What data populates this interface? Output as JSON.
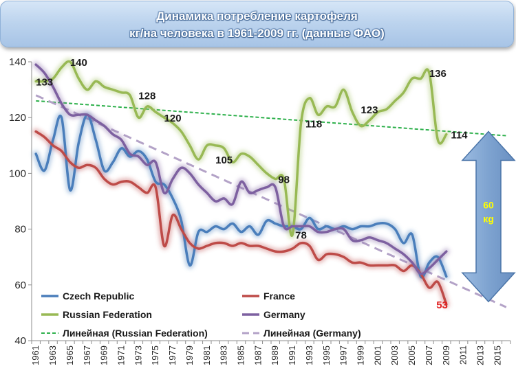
{
  "title": {
    "line1": "Динамика потребление картофеля",
    "line2": "кг/на человека в 1961-2009 гг. (данные ФАО)"
  },
  "chart_data": {
    "type": "line",
    "ylim": [
      40,
      140
    ],
    "yticks": [
      40,
      60,
      80,
      100,
      120,
      140
    ],
    "x": [
      1961,
      1962,
      1963,
      1964,
      1965,
      1966,
      1967,
      1968,
      1969,
      1970,
      1971,
      1972,
      1973,
      1974,
      1975,
      1976,
      1977,
      1978,
      1979,
      1980,
      1981,
      1982,
      1983,
      1984,
      1985,
      1986,
      1987,
      1988,
      1989,
      1990,
      1991,
      1992,
      1993,
      1994,
      1995,
      1996,
      1997,
      1998,
      1999,
      2000,
      2001,
      2002,
      2003,
      2004,
      2005,
      2006,
      2007,
      2008,
      2009
    ],
    "xticks": [
      "1961",
      "1963",
      "1965",
      "1967",
      "1969",
      "1971",
      "1973",
      "1975",
      "1977",
      "1979",
      "1981",
      "1983",
      "1985",
      "1987",
      "1989",
      "1991",
      "1993",
      "1995",
      "1997",
      "1999",
      "2001",
      "2003",
      "2005",
      "2007",
      "2009",
      "2011",
      "2013",
      "2015"
    ],
    "series": [
      {
        "name": "Czech Republic",
        "color": "#4a7ebb",
        "values": [
          107,
          101,
          112,
          120,
          94,
          111,
          121,
          112,
          101,
          104,
          109,
          106,
          108,
          105,
          97,
          96,
          91,
          83,
          67,
          79,
          79,
          81,
          80,
          82,
          79,
          81,
          78,
          83,
          82,
          81,
          81,
          80,
          84,
          80,
          81,
          80,
          81,
          80,
          81,
          81,
          82,
          82,
          80,
          75,
          78,
          63,
          68,
          70,
          63
        ]
      },
      {
        "name": "France",
        "color": "#be4b48",
        "values": [
          115,
          113,
          110,
          108,
          104,
          102,
          103,
          102,
          98,
          96,
          97,
          97,
          95,
          93,
          95,
          74,
          85,
          80,
          75,
          73,
          74,
          75,
          75,
          74,
          75,
          74,
          74,
          73,
          72,
          72,
          73,
          75,
          74,
          69,
          71,
          71,
          70,
          68,
          68,
          67,
          67,
          67,
          67,
          65,
          67,
          64,
          59,
          61,
          53
        ]
      },
      {
        "name": "Russian Federation",
        "color": "#98b954",
        "values": [
          133,
          133,
          134,
          138,
          140,
          134,
          130,
          133,
          131,
          130,
          129,
          128,
          120,
          124,
          122,
          120,
          118,
          115,
          110,
          105,
          110,
          110,
          109,
          104,
          107,
          106,
          103,
          100,
          98,
          98,
          78,
          118,
          127,
          121,
          124,
          124,
          130,
          122,
          117,
          119,
          122,
          123,
          126,
          129,
          134,
          134,
          136,
          112,
          114
        ]
      },
      {
        "name": "Germany",
        "color": "#7d60a0",
        "values": [
          139,
          136,
          131,
          125,
          121,
          121,
          121,
          119,
          117,
          114,
          112,
          107,
          106,
          103,
          104,
          93,
          98,
          102,
          100,
          96,
          93,
          90,
          91,
          89,
          97,
          93,
          94,
          95,
          95,
          81,
          81,
          81,
          81,
          79,
          79,
          80,
          80,
          76,
          76,
          77,
          76,
          75,
          73,
          71,
          68,
          64,
          66,
          69,
          72
        ]
      }
    ],
    "trendlines": [
      {
        "name": "Линейная (Russian Federation)",
        "color": "#2db04b",
        "x": [
          1961,
          2016
        ],
        "values": [
          126,
          113.5
        ]
      },
      {
        "name": "Линейная (Germany)",
        "color": "#b3a2c7",
        "x": [
          1961,
          2016
        ],
        "values": [
          128,
          52
        ]
      }
    ],
    "data_labels": [
      {
        "text": "133",
        "x": 1962,
        "y": 133,
        "color": "#1a1a1a"
      },
      {
        "text": "140",
        "x": 1966,
        "y": 140,
        "color": "#1a1a1a"
      },
      {
        "text": "128",
        "x": 1974,
        "y": 128,
        "color": "#1a1a1a"
      },
      {
        "text": "120",
        "x": 1977,
        "y": 120,
        "color": "#1a1a1a"
      },
      {
        "text": "105",
        "x": 1983,
        "y": 105,
        "color": "#1a1a1a"
      },
      {
        "text": "98",
        "x": 1990,
        "y": 98,
        "color": "#1a1a1a"
      },
      {
        "text": "78",
        "x": 1992,
        "y": 78,
        "color": "#1a1a1a"
      },
      {
        "text": "118",
        "x": 1993.5,
        "y": 118,
        "color": "#1a1a1a"
      },
      {
        "text": "123",
        "x": 2000,
        "y": 123,
        "color": "#1a1a1a"
      },
      {
        "text": "136",
        "x": 2008,
        "y": 136,
        "color": "#1a1a1a"
      },
      {
        "text": "114",
        "x": 2010.5,
        "y": 114,
        "color": "#1a1a1a"
      },
      {
        "text": "53",
        "x": 2008.5,
        "y": 53,
        "color": "#e02020"
      }
    ],
    "annotation": {
      "value": "60",
      "unit": "кg",
      "from": 115,
      "to": 54,
      "arrow_color": "#7fa3d1",
      "text_color": "#ffff00"
    },
    "legend_placement": "bottom-left",
    "grid": false
  }
}
